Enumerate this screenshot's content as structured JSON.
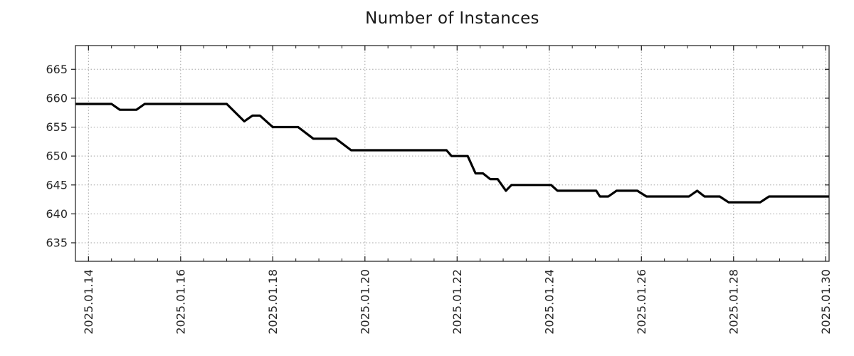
{
  "title": "Number of Instances",
  "colors": {
    "line": "#000000",
    "grid": "#a0a0a0",
    "border": "#1a1a1a",
    "tick": "#1a1a1a",
    "text": "#262626",
    "background": "#ffffff"
  },
  "chart_data": {
    "type": "line",
    "title": "Number of Instances",
    "xlabel": "",
    "ylabel": "",
    "grid": true,
    "legend": false,
    "x_axis_unit": "days since 2025-01-14 00:00",
    "xlim_days": [
      -0.283,
      16.073
    ],
    "ylim": [
      631.8,
      669.1
    ],
    "x_ticks": [
      {
        "day": 0,
        "label": "2025.01.14"
      },
      {
        "day": 2,
        "label": "2025.01.16"
      },
      {
        "day": 4,
        "label": "2025.01.18"
      },
      {
        "day": 6,
        "label": "2025.01.20"
      },
      {
        "day": 8,
        "label": "2025.01.22"
      },
      {
        "day": 10,
        "label": "2025.01.24"
      },
      {
        "day": 12,
        "label": "2025.01.26"
      },
      {
        "day": 14,
        "label": "2025.01.28"
      },
      {
        "day": 16,
        "label": "2025.01.30"
      }
    ],
    "x_minor_step_days": 0.5,
    "y_ticks": [
      635,
      640,
      645,
      650,
      655,
      660,
      665
    ],
    "series": [
      {
        "name": "instances",
        "color": "#000000",
        "points_day_value": [
          [
            -0.283,
            659
          ],
          [
            0.5,
            659
          ],
          [
            0.68,
            658
          ],
          [
            1.04,
            658
          ],
          [
            1.22,
            659
          ],
          [
            3.0,
            659
          ],
          [
            3.38,
            656
          ],
          [
            3.56,
            657
          ],
          [
            3.72,
            657
          ],
          [
            4.0,
            655
          ],
          [
            4.55,
            655
          ],
          [
            4.88,
            653
          ],
          [
            5.37,
            653
          ],
          [
            5.7,
            651
          ],
          [
            7.77,
            651
          ],
          [
            7.88,
            650
          ],
          [
            8.23,
            650
          ],
          [
            8.4,
            647
          ],
          [
            8.56,
            647
          ],
          [
            8.72,
            646
          ],
          [
            8.88,
            646
          ],
          [
            9.06,
            644
          ],
          [
            9.18,
            645
          ],
          [
            10.04,
            645
          ],
          [
            10.18,
            644
          ],
          [
            11.02,
            644
          ],
          [
            11.1,
            643
          ],
          [
            11.28,
            643
          ],
          [
            11.46,
            644
          ],
          [
            11.91,
            644
          ],
          [
            12.11,
            643
          ],
          [
            13.03,
            643
          ],
          [
            13.21,
            644
          ],
          [
            13.37,
            643
          ],
          [
            13.7,
            643
          ],
          [
            13.89,
            642
          ],
          [
            14.58,
            642
          ],
          [
            14.77,
            643
          ],
          [
            16.073,
            643
          ]
        ]
      }
    ]
  }
}
